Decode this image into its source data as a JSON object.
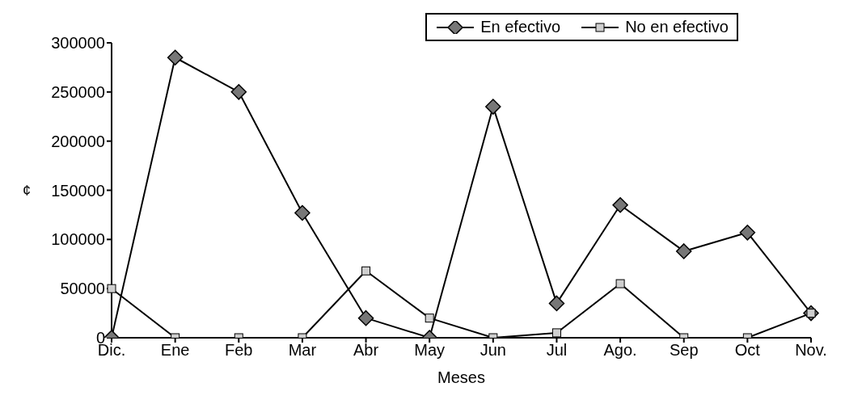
{
  "chart_data": {
    "type": "line",
    "xlabel": "Meses",
    "ylabel": "¢",
    "categories": [
      "Dic.",
      "Ene",
      "Feb",
      "Mar",
      "Abr",
      "May",
      "Jun",
      "Jul",
      "Ago.",
      "Sep",
      "Oct",
      "Nov."
    ],
    "series": [
      {
        "name": "En efectivo",
        "color": "#000000",
        "marker": "diamond",
        "values": [
          0,
          285000,
          250000,
          127000,
          20000,
          0,
          235000,
          35000,
          135000,
          88000,
          107000,
          25000
        ]
      },
      {
        "name": "No en efectivo",
        "color": "#000000",
        "marker": "square",
        "values": [
          50000,
          0,
          0,
          0,
          68000,
          20000,
          0,
          5000,
          55000,
          0,
          0,
          25000
        ]
      }
    ],
    "ylim": [
      0,
      300000
    ],
    "yticks": [
      0,
      50000,
      100000,
      150000,
      200000,
      250000,
      300000
    ],
    "grid": false,
    "legend": "top right"
  }
}
